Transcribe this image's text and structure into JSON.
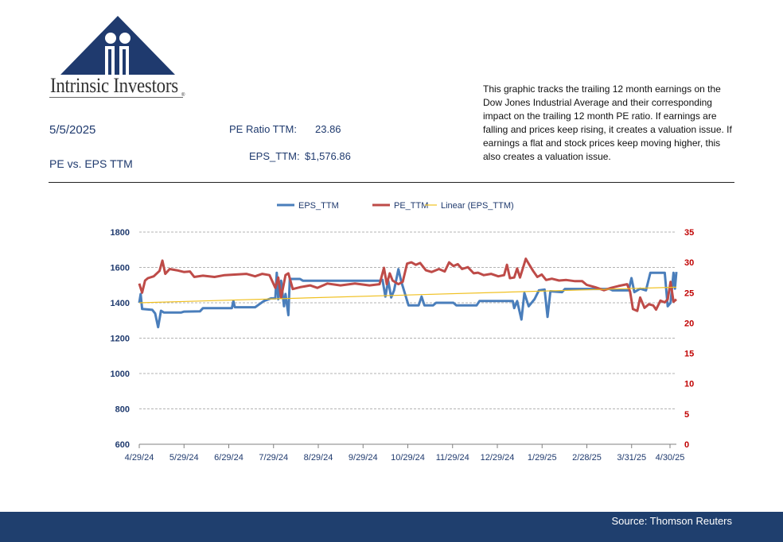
{
  "brand": {
    "logo_text": "Intrinsic Investors",
    "trademark": "®"
  },
  "header": {
    "date": "5/5/2025",
    "subtitle": "PE vs. EPS TTM",
    "pe_label": "PE Ratio TTM:",
    "pe_value": "23.86",
    "eps_label": "EPS_TTM:",
    "eps_value": "$1,576.86"
  },
  "description": "This graphic tracks the trailing 12 month earnings on the Dow Jones Industrial Average and their corresponding impact on the trailing 12 month PE ratio.  If earnings are falling and prices keep rising, it creates a valuation issue.  If earnings a flat and stock prices keep moving higher, this also creates a valuation issue.",
  "footer": {
    "source": "Source: Thomson Reuters"
  },
  "colors": {
    "eps": "#4a7ebb",
    "pe": "#be4b48",
    "trend": "#f0c020",
    "left_axis": "#1f3a6e",
    "right_axis": "#c00000",
    "footer_bg": "#1f3f6e"
  },
  "chart_data": {
    "type": "line",
    "legend": [
      "EPS_TTM",
      "PE_TTM",
      "Linear (EPS_TTM)"
    ],
    "legend_position": "top",
    "grid": true,
    "x_range": [
      "2024-04-29",
      "2025-05-05"
    ],
    "x_ticks": [
      "4/29/24",
      "5/29/24",
      "6/29/24",
      "7/29/24",
      "8/29/24",
      "9/29/24",
      "10/29/24",
      "11/29/24",
      "12/29/24",
      "1/29/25",
      "2/28/25",
      "3/31/25",
      "4/30/25"
    ],
    "y_left": {
      "ticks": [
        600,
        800,
        1000,
        1200,
        1400,
        1600,
        1800
      ],
      "range": [
        600,
        1800
      ]
    },
    "y_right": {
      "ticks": [
        0,
        5,
        10,
        15,
        20,
        25,
        30,
        35
      ],
      "range": [
        0,
        35
      ]
    },
    "series": [
      {
        "name": "EPS_TTM",
        "axis": "left",
        "points": [
          [
            "2024-04-29",
            1400
          ],
          [
            "2024-04-30",
            1450
          ],
          [
            "2024-05-01",
            1365
          ],
          [
            "2024-05-08",
            1360
          ],
          [
            "2024-05-10",
            1340
          ],
          [
            "2024-05-12",
            1262
          ],
          [
            "2024-05-14",
            1355
          ],
          [
            "2024-05-16",
            1345
          ],
          [
            "2024-05-28",
            1345
          ],
          [
            "2024-05-30",
            1350
          ],
          [
            "2024-06-10",
            1352
          ],
          [
            "2024-06-12",
            1370
          ],
          [
            "2024-07-02",
            1370
          ],
          [
            "2024-07-03",
            1410
          ],
          [
            "2024-07-04",
            1375
          ],
          [
            "2024-07-18",
            1375
          ],
          [
            "2024-07-24",
            1410
          ],
          [
            "2024-07-29",
            1425
          ],
          [
            "2024-08-01",
            1425
          ],
          [
            "2024-08-02",
            1570
          ],
          [
            "2024-08-03",
            1420
          ],
          [
            "2024-08-05",
            1525
          ],
          [
            "2024-08-07",
            1380
          ],
          [
            "2024-08-08",
            1450
          ],
          [
            "2024-08-10",
            1330
          ],
          [
            "2024-08-11",
            1535
          ],
          [
            "2024-08-18",
            1535
          ],
          [
            "2024-08-20",
            1525
          ],
          [
            "2024-10-12",
            1525
          ],
          [
            "2024-10-14",
            1530
          ],
          [
            "2024-10-16",
            1435
          ],
          [
            "2024-10-18",
            1525
          ],
          [
            "2024-10-20",
            1430
          ],
          [
            "2024-10-22",
            1470
          ],
          [
            "2024-10-25",
            1590
          ],
          [
            "2024-10-27",
            1520
          ],
          [
            "2024-11-01",
            1385
          ],
          [
            "2024-11-08",
            1385
          ],
          [
            "2024-11-10",
            1435
          ],
          [
            "2024-11-12",
            1385
          ],
          [
            "2024-11-18",
            1385
          ],
          [
            "2024-11-20",
            1400
          ],
          [
            "2024-12-02",
            1400
          ],
          [
            "2024-12-04",
            1385
          ],
          [
            "2024-12-18",
            1385
          ],
          [
            "2024-12-20",
            1410
          ],
          [
            "2025-01-12",
            1410
          ],
          [
            "2025-01-13",
            1370
          ],
          [
            "2025-01-15",
            1410
          ],
          [
            "2025-01-18",
            1305
          ],
          [
            "2025-01-20",
            1455
          ],
          [
            "2025-01-23",
            1380
          ],
          [
            "2025-01-27",
            1420
          ],
          [
            "2025-01-30",
            1470
          ],
          [
            "2025-02-03",
            1475
          ],
          [
            "2025-02-05",
            1320
          ],
          [
            "2025-02-07",
            1465
          ],
          [
            "2025-02-15",
            1460
          ],
          [
            "2025-02-17",
            1478
          ],
          [
            "2025-03-20",
            1478
          ],
          [
            "2025-03-22",
            1470
          ],
          [
            "2025-04-02",
            1470
          ],
          [
            "2025-04-04",
            1540
          ],
          [
            "2025-04-06",
            1460
          ],
          [
            "2025-04-10",
            1480
          ],
          [
            "2025-04-14",
            1470
          ],
          [
            "2025-04-17",
            1570
          ],
          [
            "2025-04-27",
            1570
          ],
          [
            "2025-04-29",
            1380
          ],
          [
            "2025-05-01",
            1400
          ],
          [
            "2025-05-03",
            1570
          ],
          [
            "2025-05-04",
            1480
          ],
          [
            "2025-05-05",
            1575
          ]
        ]
      },
      {
        "name": "PE_TTM",
        "axis": "right",
        "points": [
          [
            "2024-04-29",
            26.5
          ],
          [
            "2024-05-01",
            25.0
          ],
          [
            "2024-05-03",
            27.0
          ],
          [
            "2024-05-05",
            27.4
          ],
          [
            "2024-05-09",
            27.7
          ],
          [
            "2024-05-13",
            28.6
          ],
          [
            "2024-05-15",
            30.3
          ],
          [
            "2024-05-17",
            28.1
          ],
          [
            "2024-05-20",
            28.9
          ],
          [
            "2024-05-25",
            28.7
          ],
          [
            "2024-05-30",
            28.4
          ],
          [
            "2024-06-03",
            28.5
          ],
          [
            "2024-06-06",
            27.6
          ],
          [
            "2024-06-12",
            27.8
          ],
          [
            "2024-06-20",
            27.6
          ],
          [
            "2024-06-27",
            27.9
          ],
          [
            "2024-07-05",
            28.0
          ],
          [
            "2024-07-12",
            28.1
          ],
          [
            "2024-07-18",
            27.7
          ],
          [
            "2024-07-23",
            28.1
          ],
          [
            "2024-07-28",
            27.9
          ],
          [
            "2024-08-01",
            25.8
          ],
          [
            "2024-08-03",
            27.5
          ],
          [
            "2024-08-05",
            24.2
          ],
          [
            "2024-08-08",
            27.9
          ],
          [
            "2024-08-10",
            28.2
          ],
          [
            "2024-08-13",
            25.6
          ],
          [
            "2024-08-18",
            25.9
          ],
          [
            "2024-08-25",
            26.2
          ],
          [
            "2024-08-30",
            25.8
          ],
          [
            "2024-09-06",
            26.5
          ],
          [
            "2024-09-15",
            26.2
          ],
          [
            "2024-09-25",
            26.5
          ],
          [
            "2024-10-05",
            26.2
          ],
          [
            "2024-10-12",
            26.4
          ],
          [
            "2024-10-15",
            29.1
          ],
          [
            "2024-10-17",
            26.4
          ],
          [
            "2024-10-19",
            28.2
          ],
          [
            "2024-10-21",
            27.0
          ],
          [
            "2024-10-25",
            26.4
          ],
          [
            "2024-10-28",
            26.8
          ],
          [
            "2024-10-31",
            29.8
          ],
          [
            "2024-11-03",
            30.0
          ],
          [
            "2024-11-06",
            29.6
          ],
          [
            "2024-11-09",
            29.9
          ],
          [
            "2024-11-13",
            28.7
          ],
          [
            "2024-11-17",
            28.4
          ],
          [
            "2024-11-22",
            28.9
          ],
          [
            "2024-11-26",
            28.5
          ],
          [
            "2024-11-29",
            30.0
          ],
          [
            "2024-12-02",
            29.4
          ],
          [
            "2024-12-05",
            29.7
          ],
          [
            "2024-12-08",
            28.9
          ],
          [
            "2024-12-12",
            29.2
          ],
          [
            "2024-12-16",
            28.2
          ],
          [
            "2024-12-19",
            28.3
          ],
          [
            "2024-12-23",
            27.9
          ],
          [
            "2024-12-28",
            28.1
          ],
          [
            "2025-01-02",
            27.7
          ],
          [
            "2025-01-06",
            27.9
          ],
          [
            "2025-01-08",
            29.6
          ],
          [
            "2025-01-10",
            27.4
          ],
          [
            "2025-01-13",
            27.5
          ],
          [
            "2025-01-15",
            29.0
          ],
          [
            "2025-01-17",
            27.5
          ],
          [
            "2025-01-21",
            30.6
          ],
          [
            "2025-01-23",
            29.8
          ],
          [
            "2025-01-26",
            28.6
          ],
          [
            "2025-01-29",
            27.6
          ],
          [
            "2025-02-01",
            28.0
          ],
          [
            "2025-02-04",
            27.1
          ],
          [
            "2025-02-08",
            27.3
          ],
          [
            "2025-02-13",
            27.0
          ],
          [
            "2025-02-18",
            27.1
          ],
          [
            "2025-02-24",
            26.9
          ],
          [
            "2025-03-01",
            26.9
          ],
          [
            "2025-03-04",
            26.3
          ],
          [
            "2025-03-10",
            25.9
          ],
          [
            "2025-03-16",
            25.4
          ],
          [
            "2025-03-21",
            25.8
          ],
          [
            "2025-03-26",
            26.1
          ],
          [
            "2025-04-01",
            26.4
          ],
          [
            "2025-04-03",
            25.2
          ],
          [
            "2025-04-05",
            22.3
          ],
          [
            "2025-04-08",
            22.0
          ],
          [
            "2025-04-10",
            24.2
          ],
          [
            "2025-04-13",
            22.5
          ],
          [
            "2025-04-16",
            23.1
          ],
          [
            "2025-04-19",
            22.9
          ],
          [
            "2025-04-21",
            22.2
          ],
          [
            "2025-04-24",
            23.7
          ],
          [
            "2025-04-27",
            23.4
          ],
          [
            "2025-04-29",
            23.9
          ],
          [
            "2025-05-01",
            26.8
          ],
          [
            "2025-05-03",
            23.5
          ],
          [
            "2025-05-05",
            23.9
          ]
        ]
      },
      {
        "name": "Linear (EPS_TTM)",
        "axis": "left",
        "points": [
          [
            "2024-04-29",
            1400
          ],
          [
            "2025-05-05",
            1488
          ]
        ]
      }
    ]
  }
}
